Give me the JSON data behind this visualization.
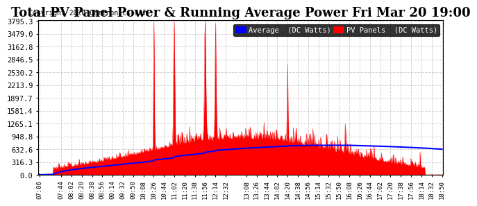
{
  "title": "Total PV Panel Power & Running Average Power Fri Mar 20 19:00",
  "copyright": "Copyright 2020 Cartronics.com",
  "legend_avg": "Average  (DC Watts)",
  "legend_pv": "PV Panels  (DC Watts)",
  "yticks": [
    0.0,
    316.3,
    632.6,
    948.8,
    1265.1,
    1581.4,
    1897.7,
    2213.9,
    2530.2,
    2846.5,
    3162.8,
    3479.0,
    3795.3
  ],
  "ymax": 3795.3,
  "bg_color": "#ffffff",
  "plot_bg_color": "#ffffff",
  "grid_color": "#cccccc",
  "pv_color": "#ff0000",
  "avg_color": "#0000ff",
  "title_fontsize": 13,
  "xtick_labels": [
    "07:06",
    "07:44",
    "08:02",
    "08:20",
    "08:38",
    "08:56",
    "09:14",
    "09:32",
    "09:50",
    "10:08",
    "10:26",
    "10:44",
    "11:02",
    "11:20",
    "11:38",
    "11:56",
    "12:14",
    "12:32",
    "13:08",
    "13:26",
    "13:44",
    "14:02",
    "14:20",
    "14:38",
    "14:56",
    "15:14",
    "15:32",
    "15:50",
    "16:08",
    "16:26",
    "16:44",
    "17:02",
    "17:20",
    "17:38",
    "17:56",
    "18:14",
    "18:32",
    "18:50"
  ]
}
